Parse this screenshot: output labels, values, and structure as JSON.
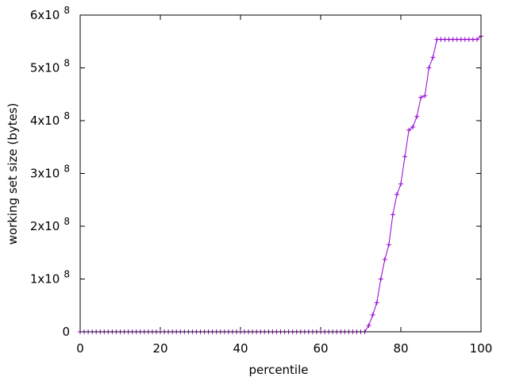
{
  "chart_data": {
    "type": "line",
    "title": "",
    "xlabel": "percentile",
    "ylabel": "working set size (bytes)",
    "xlim": [
      0,
      100
    ],
    "ylim": [
      0,
      600000000
    ],
    "x_ticks": [
      0,
      20,
      40,
      60,
      80,
      100
    ],
    "x_tick_labels": [
      "0",
      "20",
      "40",
      "60",
      "80",
      "100"
    ],
    "y_ticks": [
      {
        "value": 0,
        "mantissa": "0",
        "exponent": ""
      },
      {
        "value": 100000000,
        "mantissa": "1x10",
        "exponent": "8"
      },
      {
        "value": 200000000,
        "mantissa": "2x10",
        "exponent": "8"
      },
      {
        "value": 300000000,
        "mantissa": "3x10",
        "exponent": "8"
      },
      {
        "value": 400000000,
        "mantissa": "4x10",
        "exponent": "8"
      },
      {
        "value": 500000000,
        "mantissa": "5x10",
        "exponent": "8"
      },
      {
        "value": 600000000,
        "mantissa": "6x10",
        "exponent": "8"
      }
    ],
    "grid": false,
    "legend": "none",
    "colors": {
      "series": "#9400d3"
    },
    "series": [
      {
        "marker": "plus",
        "points": [
          [
            0,
            0
          ],
          [
            1,
            0
          ],
          [
            2,
            0
          ],
          [
            3,
            0
          ],
          [
            4,
            0
          ],
          [
            5,
            0
          ],
          [
            6,
            0
          ],
          [
            7,
            0
          ],
          [
            8,
            0
          ],
          [
            9,
            0
          ],
          [
            10,
            0
          ],
          [
            11,
            0
          ],
          [
            12,
            0
          ],
          [
            13,
            0
          ],
          [
            14,
            0
          ],
          [
            15,
            0
          ],
          [
            16,
            0
          ],
          [
            17,
            0
          ],
          [
            18,
            0
          ],
          [
            19,
            0
          ],
          [
            20,
            0
          ],
          [
            21,
            0
          ],
          [
            22,
            0
          ],
          [
            23,
            0
          ],
          [
            24,
            0
          ],
          [
            25,
            0
          ],
          [
            26,
            0
          ],
          [
            27,
            0
          ],
          [
            28,
            0
          ],
          [
            29,
            0
          ],
          [
            30,
            0
          ],
          [
            31,
            0
          ],
          [
            32,
            0
          ],
          [
            33,
            0
          ],
          [
            34,
            0
          ],
          [
            35,
            0
          ],
          [
            36,
            0
          ],
          [
            37,
            0
          ],
          [
            38,
            0
          ],
          [
            39,
            0
          ],
          [
            40,
            0
          ],
          [
            41,
            0
          ],
          [
            42,
            0
          ],
          [
            43,
            0
          ],
          [
            44,
            0
          ],
          [
            45,
            0
          ],
          [
            46,
            0
          ],
          [
            47,
            0
          ],
          [
            48,
            0
          ],
          [
            49,
            0
          ],
          [
            50,
            0
          ],
          [
            51,
            0
          ],
          [
            52,
            0
          ],
          [
            53,
            0
          ],
          [
            54,
            0
          ],
          [
            55,
            0
          ],
          [
            56,
            0
          ],
          [
            57,
            0
          ],
          [
            58,
            0
          ],
          [
            59,
            0
          ],
          [
            60,
            0
          ],
          [
            61,
            0
          ],
          [
            62,
            0
          ],
          [
            63,
            0
          ],
          [
            64,
            0
          ],
          [
            65,
            0
          ],
          [
            66,
            0
          ],
          [
            67,
            0
          ],
          [
            68,
            0
          ],
          [
            69,
            0
          ],
          [
            70,
            0
          ],
          [
            71,
            0
          ],
          [
            72,
            12000000
          ],
          [
            73,
            32000000
          ],
          [
            74,
            55000000
          ],
          [
            75,
            100000000
          ],
          [
            76,
            137000000
          ],
          [
            77,
            165000000
          ],
          [
            78,
            222000000
          ],
          [
            79,
            260000000
          ],
          [
            80,
            280000000
          ],
          [
            81,
            332000000
          ],
          [
            82,
            382000000
          ],
          [
            83,
            388000000
          ],
          [
            84,
            408000000
          ],
          [
            85,
            444000000
          ],
          [
            86,
            447000000
          ],
          [
            87,
            500000000
          ],
          [
            88,
            520000000
          ],
          [
            89,
            554000000
          ],
          [
            90,
            554000000
          ],
          [
            91,
            554000000
          ],
          [
            92,
            554000000
          ],
          [
            93,
            554000000
          ],
          [
            94,
            554000000
          ],
          [
            95,
            554000000
          ],
          [
            96,
            554000000
          ],
          [
            97,
            554000000
          ],
          [
            98,
            554000000
          ],
          [
            99,
            554000000
          ],
          [
            100,
            560000000
          ]
        ]
      }
    ]
  }
}
